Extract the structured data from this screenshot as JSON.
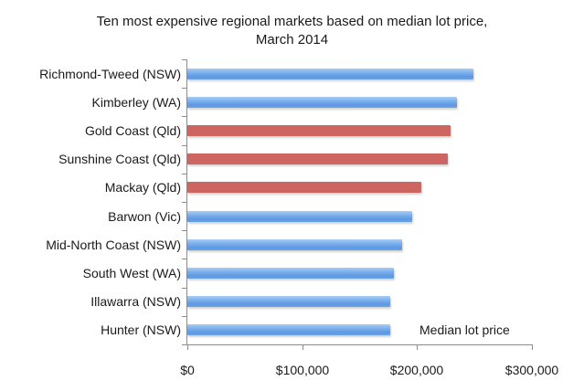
{
  "chart_data": {
    "type": "bar",
    "orientation": "horizontal",
    "title": "Ten most expensive regional markets based on median lot price, March 2014",
    "title_lines": [
      "Ten most expensive regional markets based on median lot price,",
      "March 2014"
    ],
    "xlabel": "",
    "ylabel": "",
    "xlim": [
      0,
      300000
    ],
    "x_ticks": [
      "$0",
      "$100,000",
      "$200,000",
      "$300,000"
    ],
    "grid": false,
    "legend": {
      "position": "bottom-right inside plot",
      "entries": [
        "Median lot price"
      ]
    },
    "categories": [
      "Richmond-Tweed (NSW)",
      "Kimberley (WA)",
      "Gold Coast (Qld)",
      "Sunshine Coast (Qld)",
      "Mackay (Qld)",
      "Barwon (Vic)",
      "Mid-North Coast (NSW)",
      "South West (WA)",
      "Illawarra (NSW)",
      "Hunter (NSW)"
    ],
    "series": [
      {
        "name": "Median lot price",
        "values": [
          249000,
          235000,
          229000,
          227000,
          204000,
          196000,
          187000,
          180000,
          177000,
          177000
        ],
        "colors": [
          "#6aa3e6",
          "#6aa3e6",
          "#cd6560",
          "#cd6560",
          "#cd6560",
          "#6aa3e6",
          "#6aa3e6",
          "#6aa3e6",
          "#6aa3e6",
          "#6aa3e6"
        ]
      }
    ],
    "highlight_note_colors": {
      "default": "#6aa3e6",
      "highlighted_qld": "#cd6560"
    }
  },
  "labels": {
    "title_line1": "Ten most expensive regional markets based on median lot price,",
    "title_line2": "March 2014",
    "legend": "Median lot price",
    "x_ticks": [
      "$0",
      "$100,000",
      "$200,000",
      "$300,000"
    ],
    "categories": [
      "Richmond-Tweed (NSW)",
      "Kimberley (WA)",
      "Gold Coast (Qld)",
      "Sunshine Coast (Qld)",
      "Mackay (Qld)",
      "Barwon (Vic)",
      "Mid-North Coast (NSW)",
      "South West (WA)",
      "Illawarra (NSW)",
      "Hunter (NSW)"
    ]
  }
}
